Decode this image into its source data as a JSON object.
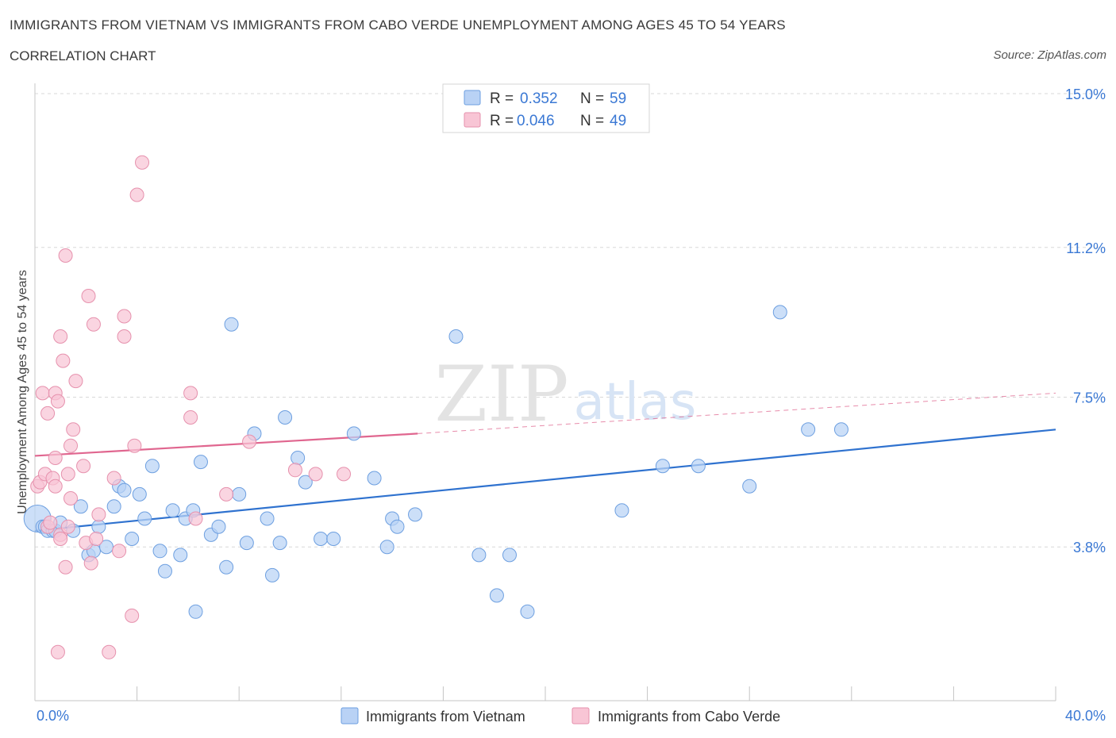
{
  "title": "IMMIGRANTS FROM VIETNAM VS IMMIGRANTS FROM CABO VERDE UNEMPLOYMENT AMONG AGES 45 TO 54 YEARS",
  "subtitle": "CORRELATION CHART",
  "source": "Source: ZipAtlas.com",
  "watermark": {
    "zip": "ZIP",
    "atlas": "atlas"
  },
  "colors": {
    "blue_fill": "#b9d2f5",
    "blue_stroke": "#6d9fe0",
    "blue_line": "#2f72cf",
    "pink_fill": "#f8c5d5",
    "pink_stroke": "#e691ad",
    "pink_line": "#e0668f",
    "value_text": "#3a78d4",
    "grid": "#d8d8d8"
  },
  "legend_box": [
    {
      "r_label": "R =",
      "r_value": "0.352",
      "n_label": "N =",
      "n_value": "59"
    },
    {
      "r_label": "R =",
      "r_value": "0.046",
      "n_label": "N =",
      "n_value": "49"
    }
  ],
  "chart_data": {
    "type": "scatter",
    "xlabel": "",
    "ylabel": "Unemployment Among Ages 45 to 54 years",
    "xlim": [
      0,
      40
    ],
    "ylim": [
      0,
      15
    ],
    "x_tick_labels": [
      {
        "value": 0,
        "label": "0.0%"
      },
      {
        "value": 40,
        "label": "40.0%"
      }
    ],
    "y_tick_labels": [
      {
        "value": 3.8,
        "label": "3.8%"
      },
      {
        "value": 7.5,
        "label": "7.5%"
      },
      {
        "value": 11.2,
        "label": "11.2%"
      },
      {
        "value": 15.0,
        "label": "15.0%"
      }
    ],
    "series": [
      {
        "name": "Immigrants from Vietnam",
        "r": 0.352,
        "n": 59,
        "trend": {
          "x0": 0,
          "y0": 4.2,
          "x1": 40,
          "y1": 6.7
        },
        "points": [
          [
            0.1,
            4.5
          ],
          [
            0.3,
            4.3
          ],
          [
            0.4,
            4.3
          ],
          [
            0.5,
            4.2
          ],
          [
            0.7,
            4.2
          ],
          [
            0.8,
            4.2
          ],
          [
            1.0,
            4.4
          ],
          [
            1.5,
            4.2
          ],
          [
            1.8,
            4.8
          ],
          [
            2.1,
            3.6
          ],
          [
            2.3,
            3.7
          ],
          [
            2.5,
            4.3
          ],
          [
            2.8,
            3.8
          ],
          [
            3.1,
            4.8
          ],
          [
            3.3,
            5.3
          ],
          [
            3.5,
            5.2
          ],
          [
            3.8,
            4.0
          ],
          [
            4.1,
            5.1
          ],
          [
            4.3,
            4.5
          ],
          [
            4.6,
            5.8
          ],
          [
            4.9,
            3.7
          ],
          [
            5.1,
            3.2
          ],
          [
            5.4,
            4.7
          ],
          [
            5.7,
            3.6
          ],
          [
            5.9,
            4.5
          ],
          [
            6.2,
            4.7
          ],
          [
            6.3,
            2.2
          ],
          [
            6.5,
            5.9
          ],
          [
            6.9,
            4.1
          ],
          [
            7.2,
            4.3
          ],
          [
            7.5,
            3.3
          ],
          [
            7.7,
            9.3
          ],
          [
            8.0,
            5.1
          ],
          [
            8.3,
            3.9
          ],
          [
            8.6,
            6.6
          ],
          [
            9.1,
            4.5
          ],
          [
            9.3,
            3.1
          ],
          [
            9.6,
            3.9
          ],
          [
            9.8,
            7.0
          ],
          [
            10.3,
            6.0
          ],
          [
            10.6,
            5.4
          ],
          [
            11.2,
            4.0
          ],
          [
            11.7,
            4.0
          ],
          [
            12.5,
            6.6
          ],
          [
            13.3,
            5.5
          ],
          [
            13.8,
            3.8
          ],
          [
            14.0,
            4.5
          ],
          [
            14.2,
            4.3
          ],
          [
            14.9,
            4.6
          ],
          [
            16.5,
            9.0
          ],
          [
            17.4,
            3.6
          ],
          [
            18.1,
            2.6
          ],
          [
            18.6,
            3.6
          ],
          [
            19.3,
            2.2
          ],
          [
            23.0,
            4.7
          ],
          [
            24.6,
            5.8
          ],
          [
            26.0,
            5.8
          ],
          [
            28.0,
            5.3
          ],
          [
            29.2,
            9.6
          ],
          [
            30.3,
            6.7
          ],
          [
            31.6,
            6.7
          ]
        ]
      },
      {
        "name": "Immigrants from Cabo Verde",
        "r": 0.046,
        "n": 49,
        "trend": {
          "x0": 0,
          "y0": 6.05,
          "x1": 15.0,
          "y1": 6.6
        },
        "trend_dashed": {
          "x0": 15.0,
          "y0": 6.6,
          "x1": 40,
          "y1": 7.6
        },
        "points": [
          [
            0.1,
            5.3
          ],
          [
            0.2,
            5.4
          ],
          [
            0.3,
            7.6
          ],
          [
            0.4,
            5.6
          ],
          [
            0.5,
            7.1
          ],
          [
            0.5,
            4.3
          ],
          [
            0.6,
            4.4
          ],
          [
            0.7,
            5.5
          ],
          [
            0.8,
            7.6
          ],
          [
            0.8,
            5.3
          ],
          [
            0.8,
            6.0
          ],
          [
            0.9,
            1.2
          ],
          [
            0.9,
            7.4
          ],
          [
            1.0,
            4.1
          ],
          [
            1.0,
            4.0
          ],
          [
            1.0,
            9.0
          ],
          [
            1.1,
            8.4
          ],
          [
            1.2,
            11.0
          ],
          [
            1.2,
            3.3
          ],
          [
            1.3,
            4.3
          ],
          [
            1.3,
            5.6
          ],
          [
            1.4,
            6.3
          ],
          [
            1.4,
            5.0
          ],
          [
            1.5,
            6.7
          ],
          [
            1.6,
            7.9
          ],
          [
            1.9,
            5.8
          ],
          [
            2.0,
            3.9
          ],
          [
            2.1,
            10.0
          ],
          [
            2.2,
            3.4
          ],
          [
            2.3,
            9.3
          ],
          [
            2.4,
            4.0
          ],
          [
            2.5,
            4.6
          ],
          [
            2.9,
            1.2
          ],
          [
            3.1,
            5.5
          ],
          [
            3.3,
            3.7
          ],
          [
            3.5,
            9.5
          ],
          [
            3.5,
            9.0
          ],
          [
            3.8,
            2.1
          ],
          [
            3.9,
            6.3
          ],
          [
            4.0,
            12.5
          ],
          [
            4.2,
            13.3
          ],
          [
            6.1,
            7.0
          ],
          [
            6.1,
            7.6
          ],
          [
            6.3,
            4.5
          ],
          [
            7.5,
            5.1
          ],
          [
            8.4,
            6.4
          ],
          [
            10.2,
            5.7
          ],
          [
            11.0,
            5.6
          ],
          [
            12.1,
            5.6
          ]
        ]
      }
    ]
  }
}
